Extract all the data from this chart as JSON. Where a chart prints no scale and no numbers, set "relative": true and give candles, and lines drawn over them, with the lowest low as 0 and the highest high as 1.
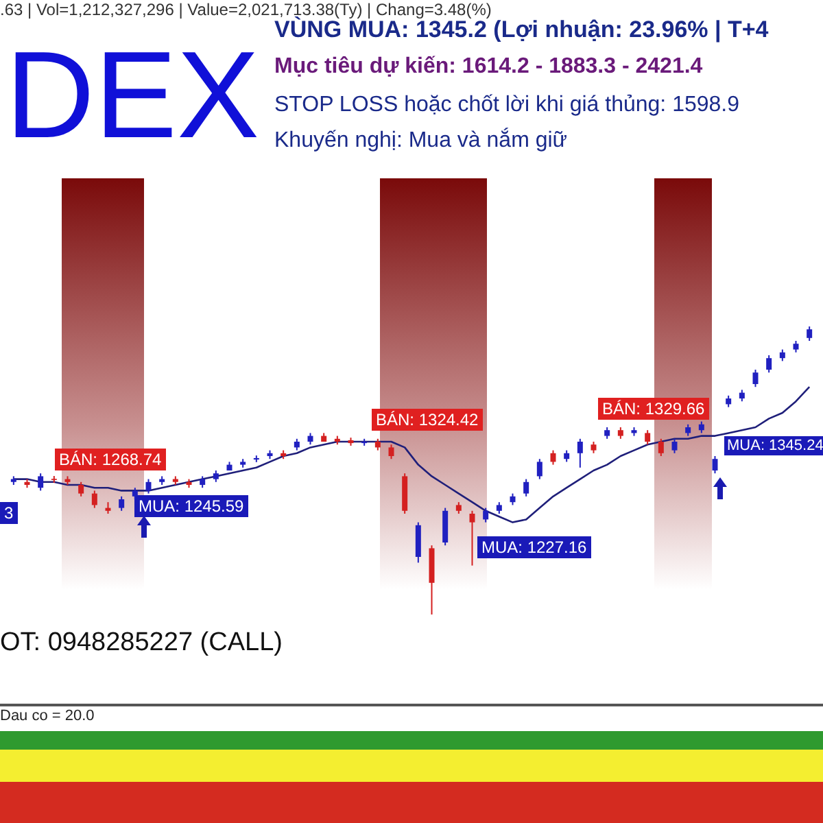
{
  "chart_data": {
    "type": "candlestick",
    "title": "DEX",
    "subtitle": ".63 | Vol=1,212,327,296 | Value=2,021,713.38(Ty) | Chang=3.48(%)",
    "annotations": [
      "VÙNG MUA:  1345.2 (Lợi nhuận: 23.96%  |  T+4",
      "Mục tiêu dự kiến:  1614.2 - 1883.3 - 2421.4",
      "STOP LOSS hoặc chốt lời khi giá thủng: 1598.9",
      "Khuyến nghị: Mua và nắm giữ",
      "BÁN: 1268.74",
      "MUA: 1245.59",
      "BÁN: 1324.42",
      "MUA: 1227.16",
      "BÁN: 1329.66",
      "MUA: 1345.24",
      "3",
      "OT: 0948285227 (CALL)",
      "Dau co = 20.0"
    ],
    "relative": true,
    "categories": [
      null,
      null,
      null,
      null,
      null,
      null,
      null,
      null,
      null,
      null,
      null,
      null,
      null,
      null,
      null,
      null,
      null,
      null,
      null,
      null,
      null,
      null,
      null,
      null,
      null,
      null,
      null,
      null,
      null,
      null,
      null,
      null,
      null,
      null,
      null,
      null,
      null,
      null,
      null,
      null,
      null,
      null,
      null,
      null,
      null,
      null,
      null,
      null,
      null,
      null,
      null,
      null,
      null,
      null,
      null,
      null,
      null,
      null,
      null,
      null
    ],
    "ohlc": [
      [
        0.46,
        0.48,
        0.45,
        0.47
      ],
      [
        0.46,
        0.47,
        0.44,
        0.45
      ],
      [
        0.44,
        0.49,
        0.43,
        0.48
      ],
      [
        0.471,
        0.481,
        0.457,
        0.467
      ],
      [
        0.47,
        0.48,
        0.45,
        0.46
      ],
      [
        0.45,
        0.46,
        0.41,
        0.42
      ],
      [
        0.42,
        0.43,
        0.37,
        0.38
      ],
      [
        0.37,
        0.39,
        0.35,
        0.36
      ],
      [
        0.37,
        0.41,
        0.36,
        0.4
      ],
      [
        0.41,
        0.44,
        0.4,
        0.43
      ],
      [
        0.43,
        0.47,
        0.42,
        0.46
      ],
      [
        0.46,
        0.48,
        0.45,
        0.47
      ],
      [
        0.47,
        0.48,
        0.45,
        0.46
      ],
      [
        0.46,
        0.47,
        0.44,
        0.45
      ],
      [
        0.45,
        0.48,
        0.44,
        0.47
      ],
      [
        0.47,
        0.5,
        0.46,
        0.49
      ],
      [
        0.5,
        0.53,
        0.5,
        0.52
      ],
      [
        0.52,
        0.54,
        0.51,
        0.53
      ],
      [
        0.538,
        0.552,
        0.529,
        0.543
      ],
      [
        0.55,
        0.57,
        0.54,
        0.56
      ],
      [
        0.56,
        0.57,
        0.54,
        0.55
      ],
      [
        0.58,
        0.61,
        0.57,
        0.6
      ],
      [
        0.6,
        0.63,
        0.59,
        0.62
      ],
      [
        0.62,
        0.63,
        0.6,
        0.6
      ],
      [
        0.61,
        0.62,
        0.59,
        0.6
      ],
      [
        0.605,
        0.614,
        0.586,
        0.595
      ],
      [
        0.595,
        0.61,
        0.586,
        0.6
      ],
      [
        0.6,
        0.61,
        0.57,
        0.58
      ],
      [
        0.58,
        0.59,
        0.54,
        0.55
      ],
      [
        0.48,
        0.49,
        0.35,
        0.36
      ],
      [
        0.2,
        0.32,
        0.18,
        0.31
      ],
      [
        0.23,
        0.24,
        0,
        0.11
      ],
      [
        0.25,
        0.37,
        0.24,
        0.36
      ],
      [
        0.38,
        0.39,
        0.35,
        0.36
      ],
      [
        0.35,
        0.36,
        0.17,
        0.32
      ],
      [
        0.33,
        0.37,
        0.32,
        0.36
      ],
      [
        0.36,
        0.39,
        0.35,
        0.38
      ],
      [
        0.39,
        0.42,
        0.38,
        0.41
      ],
      [
        0.42,
        0.47,
        0.41,
        0.46
      ],
      [
        0.48,
        0.54,
        0.47,
        0.53
      ],
      [
        0.56,
        0.57,
        0.52,
        0.53
      ],
      [
        0.54,
        0.57,
        0.53,
        0.56
      ],
      [
        0.56,
        0.61,
        0.51,
        0.6
      ],
      [
        0.59,
        0.6,
        0.56,
        0.57
      ],
      [
        0.62,
        0.65,
        0.61,
        0.64
      ],
      [
        0.64,
        0.65,
        0.61,
        0.62
      ],
      [
        0.63,
        0.65,
        0.62,
        0.64
      ],
      [
        0.63,
        0.64,
        0.59,
        0.6
      ],
      [
        0.6,
        0.61,
        0.55,
        0.56
      ],
      [
        0.57,
        0.61,
        0.56,
        0.6
      ],
      [
        0.63,
        0.66,
        0.62,
        0.65
      ],
      [
        0.64,
        0.67,
        0.63,
        0.66
      ],
      [
        0.5,
        0.55,
        0.49,
        0.54
      ],
      [
        0.73,
        0.76,
        0.72,
        0.75
      ],
      [
        0.75,
        0.78,
        0.74,
        0.77
      ],
      [
        0.8,
        0.85,
        0.79,
        0.84
      ],
      [
        0.85,
        0.9,
        0.84,
        0.89
      ],
      [
        0.89,
        0.92,
        0.88,
        0.91
      ],
      [
        0.92,
        0.95,
        0.91,
        0.94
      ],
      [
        0.96,
        1,
        0.95,
        0.99
      ]
    ],
    "colors": [
      "#2020c0",
      "#d42020",
      "#2020c0",
      "#d42020",
      "#d42020",
      "#d42020",
      "#d42020",
      "#d42020",
      "#2020c0",
      "#2020c0",
      "#2020c0",
      "#2020c0",
      "#d42020",
      "#d42020",
      "#2020c0",
      "#2020c0",
      "#2020c0",
      "#2020c0",
      "#2020c0",
      "#2020c0",
      "#d42020",
      "#2020c0",
      "#2020c0",
      "#d42020",
      "#d42020",
      "#d42020",
      "#2020c0",
      "#d42020",
      "#d42020",
      "#d42020",
      "#2020c0",
      "#d42020",
      "#2020c0",
      "#d42020",
      "#d42020",
      "#2020c0",
      "#2020c0",
      "#2020c0",
      "#2020c0",
      "#2020c0",
      "#d42020",
      "#2020c0",
      "#2020c0",
      "#d42020",
      "#2020c0",
      "#d42020",
      "#2020c0",
      "#d42020",
      "#d42020",
      "#2020c0",
      "#2020c0",
      "#2020c0",
      "#2020c0",
      "#2020c0",
      "#2020c0",
      "#2020c0",
      "#2020c0",
      "#2020c0",
      "#2020c0",
      "#2020c0"
    ],
    "series": [
      {
        "type": "line",
        "color": "#1f1f7a",
        "values": [
          0.47,
          0.47,
          0.46,
          0.46,
          0.45,
          0.45,
          0.44,
          0.44,
          0.43,
          0.43,
          0.43,
          0.44,
          0.45,
          0.46,
          0.47,
          0.48,
          0.49,
          0.5,
          0.51,
          0.53,
          0.55,
          0.56,
          0.58,
          0.59,
          0.6,
          0.6,
          0.6,
          0.6,
          0.6,
          0.58,
          0.52,
          0.48,
          0.45,
          0.42,
          0.39,
          0.36,
          0.34,
          0.32,
          0.33,
          0.37,
          0.41,
          0.44,
          0.47,
          0.5,
          0.52,
          0.55,
          0.57,
          0.59,
          0.6,
          0.61,
          0.61,
          0.62,
          0.62,
          0.63,
          0.64,
          0.65,
          0.68,
          0.7,
          0.74,
          0.79
        ]
      }
    ]
  }
}
